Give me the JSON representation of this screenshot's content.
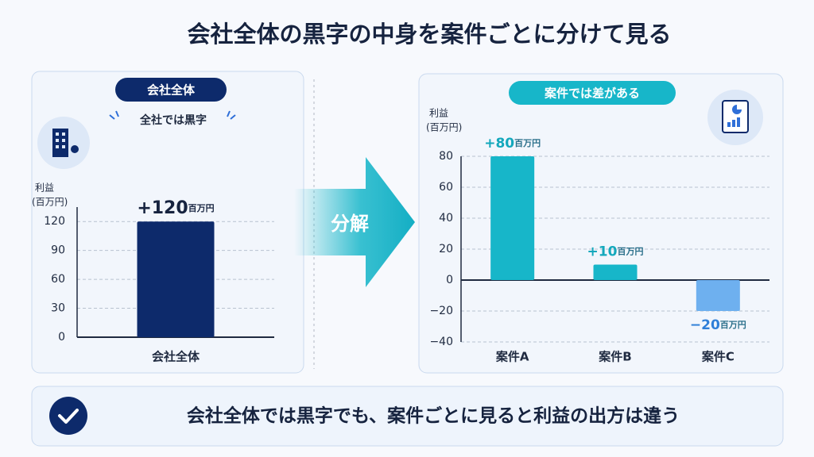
{
  "title": "会社全体の黒字の中身を案件ごとに分けて見る",
  "arrow_label": "分解",
  "conclusion": "会社全体では黒字でも、案件ごとに見ると利益の出方は違う",
  "chart_data": [
    {
      "type": "bar",
      "badge": "会社全体",
      "caption": "全社では黒字",
      "ylabel": "利益",
      "yunit": "(百万円)",
      "categories": [
        "会社全体"
      ],
      "values": [
        120
      ],
      "value_labels": [
        "+120"
      ],
      "value_label_unit": "百万円",
      "colors": [
        "#0d2a6b"
      ],
      "ylim": [
        0,
        135
      ],
      "yticks": [
        0,
        30,
        60,
        90,
        120
      ],
      "grid": true
    },
    {
      "type": "bar",
      "badge": "案件では差がある",
      "ylabel": "利益",
      "yunit": "(百万円)",
      "categories": [
        "案件A",
        "案件B",
        "案件C"
      ],
      "values": [
        80,
        10,
        -20
      ],
      "value_labels": [
        "+80",
        "+10",
        "−20"
      ],
      "value_label_unit": "百万円",
      "colors": [
        "#17b6c9",
        "#17b6c9",
        "#6eb0ef"
      ],
      "ylim": [
        -40,
        80
      ],
      "yticks": [
        80,
        60,
        40,
        20,
        0,
        {
          "value": -20,
          "label": "−20"
        },
        {
          "value": -40,
          "label": "−40"
        }
      ],
      "grid": true
    }
  ]
}
